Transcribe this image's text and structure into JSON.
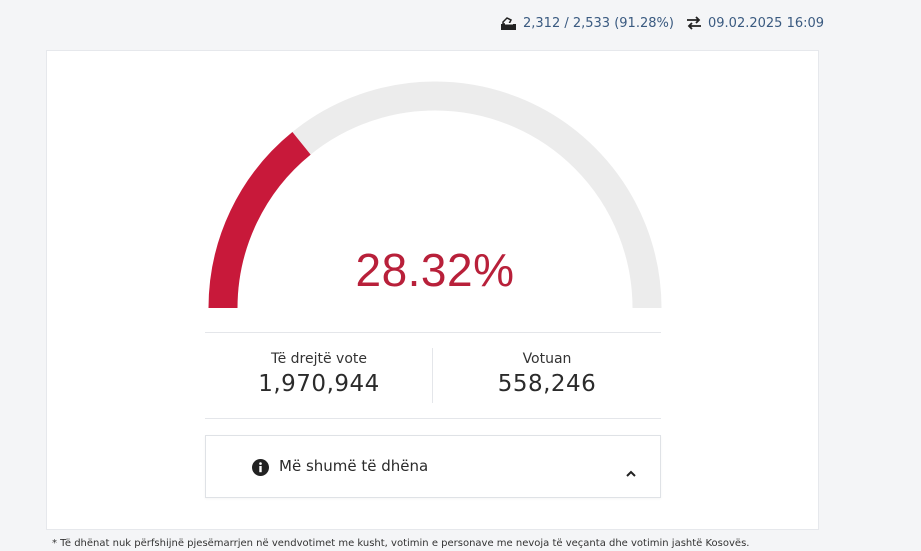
{
  "header": {
    "ballot_icon": "ballot-box-icon",
    "ballots_text": "2,312 / 2,533 (91.28%)",
    "refresh_icon": "swap-arrows-icon",
    "updated_text": "09.02.2025 16:09"
  },
  "turnout": {
    "percent_label": "28.32%",
    "percent_value": 28.32,
    "gauge_fill_color": "#c8193a",
    "gauge_track_color": "#ececec"
  },
  "metrics": {
    "eligible_label": "Të drejtë vote",
    "eligible_value": "1,970,944",
    "voted_label": "Votuan",
    "voted_value": "558,246"
  },
  "more": {
    "info_icon": "info-icon",
    "label": "Më shumë të dhëna",
    "chevron_icon": "chevron-up-icon"
  },
  "footnote": "* Të dhënat nuk përfshijnë pjesëmarrjen në vendvotimet me kusht, votimin e personave me nevoja të veçanta dhe votimin jashtë Kosovës."
}
